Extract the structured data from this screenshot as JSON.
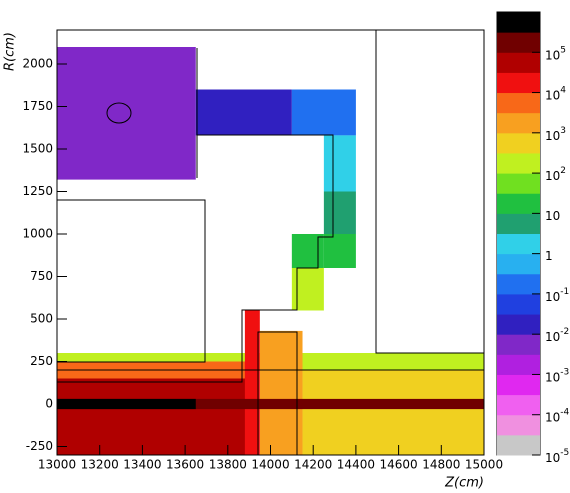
{
  "chart_data": {
    "type": "heatmap",
    "x_label": "Z(cm)",
    "y_label": "R(cm)",
    "xlim": [
      13000,
      15000
    ],
    "ylim": [
      -300,
      2200
    ],
    "xticks": [
      13000,
      13200,
      13400,
      13600,
      13800,
      14000,
      14200,
      14400,
      14600,
      14800,
      15000
    ],
    "yticks": [
      -250,
      0,
      250,
      500,
      750,
      1000,
      1250,
      1500,
      1750,
      2000
    ],
    "zlim": [
      1e-05,
      1000000
    ],
    "zscale": "log",
    "zticks": [
      {
        "value": 1e-05,
        "label": "10",
        "sup": "-5"
      },
      {
        "value": 0.0001,
        "label": "10",
        "sup": "-4"
      },
      {
        "value": 0.001,
        "label": "10",
        "sup": "-3"
      },
      {
        "value": 0.01,
        "label": "10",
        "sup": "-2"
      },
      {
        "value": 0.1,
        "label": "10",
        "sup": "-1"
      },
      1,
      10,
      {
        "value": 100,
        "label": "10",
        "sup": "2"
      },
      {
        "value": 1000,
        "label": "10",
        "sup": "3"
      },
      {
        "value": 10000,
        "label": "10",
        "sup": "4"
      },
      {
        "value": 100000,
        "label": "10",
        "sup": "5"
      }
    ],
    "palette": [
      "#c8c8c8",
      "#f090e0",
      "#f060f0",
      "#e028f0",
      "#b020e0",
      "#8028c8",
      "#3020c0",
      "#2040e0",
      "#2070f0",
      "#28b0f0",
      "#30d0e8",
      "#20a070",
      "#20c040",
      "#70e020",
      "#c0f020",
      "#f0d020",
      "#f8a020",
      "#f86818",
      "#f01010",
      "#b00000",
      "#700000",
      "#000000"
    ],
    "cells": [
      {
        "x": [
          13000,
          13650
        ],
        "y": [
          1320,
          2100
        ],
        "value": 0.005
      },
      {
        "x": [
          13650,
          14100
        ],
        "y": [
          1580,
          1850
        ],
        "value": 0.03
      },
      {
        "x": [
          14100,
          14400
        ],
        "y": [
          1580,
          1850
        ],
        "value": 0.3
      },
      {
        "x": [
          14250,
          14400
        ],
        "y": [
          1250,
          1580
        ],
        "value": 1
      },
      {
        "x": [
          14250,
          14400
        ],
        "y": [
          1000,
          1250
        ],
        "value": 5
      },
      {
        "x": [
          14100,
          14250
        ],
        "y": [
          800,
          1000
        ],
        "value": 20
      },
      {
        "x": [
          14250,
          14400
        ],
        "y": [
          800,
          1000
        ],
        "value": 30
      },
      {
        "x": [
          14100,
          14250
        ],
        "y": [
          550,
          800
        ],
        "value": 200
      },
      {
        "x": [
          13000,
          15000
        ],
        "y": [
          200,
          300
        ],
        "value": 100
      },
      {
        "x": [
          14150,
          15000
        ],
        "y": [
          -300,
          200
        ],
        "value": 600
      },
      {
        "x": [
          13950,
          14150
        ],
        "y": [
          -300,
          430
        ],
        "value": 3000
      },
      {
        "x": [
          13000,
          13900
        ],
        "y": [
          150,
          250
        ],
        "value": 5000
      },
      {
        "x": [
          13000,
          13900
        ],
        "y": [
          -300,
          150
        ],
        "value": 50000
      },
      {
        "x": [
          13880,
          13950
        ],
        "y": [
          -300,
          550
        ],
        "value": 15000
      },
      {
        "x": [
          13000,
          15000
        ],
        "y": [
          -30,
          30
        ],
        "value": 100000
      },
      {
        "x": [
          13000,
          13650
        ],
        "y": [
          -30,
          30
        ],
        "value": 500000
      }
    ]
  }
}
